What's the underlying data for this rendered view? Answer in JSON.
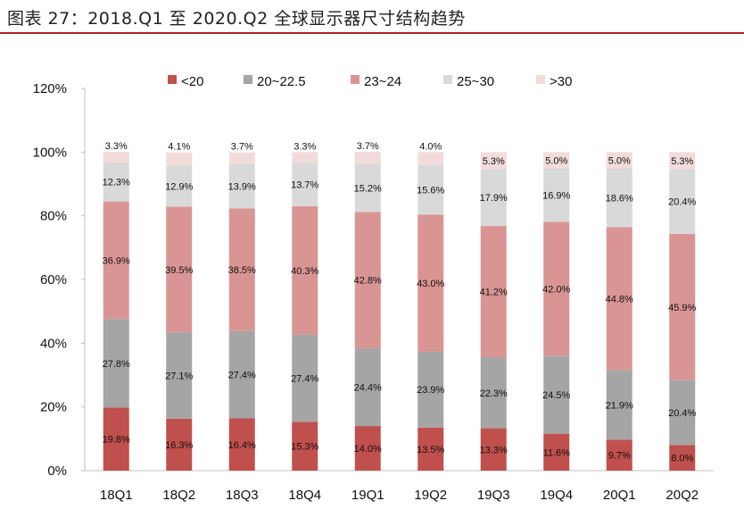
{
  "title": "图表 27：2018.Q1 至 2020.Q2 全球显示器尺寸结构趋势",
  "chart_data": {
    "type": "bar",
    "stacked": true,
    "categories": [
      "18Q1",
      "18Q2",
      "18Q3",
      "18Q4",
      "19Q1",
      "19Q2",
      "19Q3",
      "19Q4",
      "20Q1",
      "20Q2"
    ],
    "series": [
      {
        "name": "<20",
        "color": "#C0504D",
        "values": [
          19.8,
          16.3,
          16.4,
          15.3,
          14.0,
          13.5,
          13.3,
          11.6,
          9.7,
          8.0
        ]
      },
      {
        "name": "20~22.5",
        "color": "#A5A5A5",
        "values": [
          27.8,
          27.1,
          27.4,
          27.4,
          24.4,
          23.9,
          22.3,
          24.5,
          21.9,
          20.4
        ]
      },
      {
        "name": "23~24",
        "color": "#D99594",
        "values": [
          36.9,
          39.5,
          38.5,
          40.3,
          42.8,
          43.0,
          41.2,
          42.0,
          44.8,
          45.9
        ]
      },
      {
        "name": "25~30",
        "color": "#D9D9D9",
        "values": [
          12.3,
          12.9,
          13.9,
          13.7,
          15.2,
          15.6,
          17.9,
          16.9,
          18.6,
          20.4
        ]
      },
      {
        "name": ">30",
        "color": "#F2DCDB",
        "values": [
          3.3,
          4.1,
          3.7,
          3.3,
          3.7,
          4.0,
          5.3,
          5.0,
          5.0,
          5.3
        ]
      }
    ],
    "value_format": "0.0%",
    "y_ticks": [
      "0%",
      "20%",
      "40%",
      "60%",
      "80%",
      "100%",
      "120%"
    ],
    "ylim": [
      0,
      120
    ],
    "grid": false,
    "legend": "top"
  }
}
